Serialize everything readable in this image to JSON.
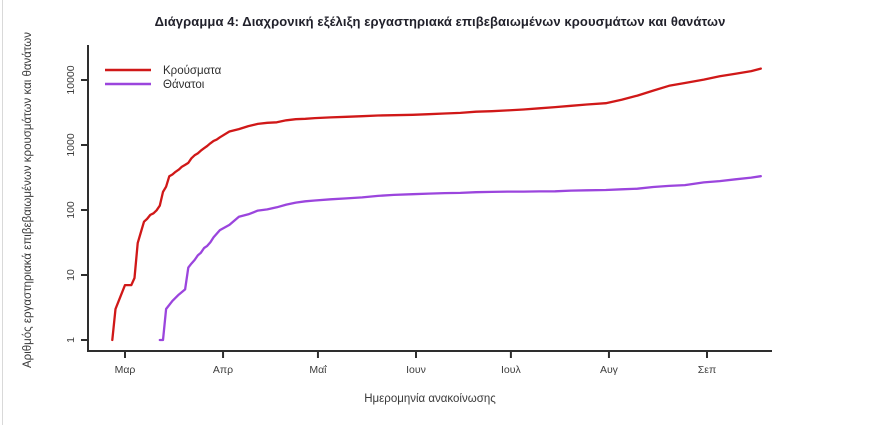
{
  "chart_data": {
    "type": "line",
    "title": "Διάγραμμα 4: Διαχρονική εξέλιξη εργαστηριακά επιβεβαιωμένων κρουσμάτων και θανάτων",
    "xlabel": "Ημερομηνία ανακοίνωσης",
    "ylabel": "Αριθμός εργαστηριακά επιβεβαιωμένων κρουσμάτων και θανάτων",
    "y_scale": "log",
    "y_ticks": [
      1,
      10,
      100,
      1000,
      10000
    ],
    "ylim": [
      1,
      20000
    ],
    "x_ticks": [
      "Μαρ",
      "Απρ",
      "Μαΐ",
      "Ιουν",
      "Ιουλ",
      "Αυγ",
      "Σεπ"
    ],
    "x_tick_days": [
      0,
      31,
      61,
      92,
      122,
      153,
      184
    ],
    "x_encoding": "days since 1 Μαρ",
    "grid": false,
    "legend_position": "top-left",
    "legend": [
      {
        "label": "Κρούσματα",
        "color": "#d01818"
      },
      {
        "label": "Θάνατοι",
        "color": "#9b45dd"
      }
    ],
    "series": [
      {
        "name": "Κρούσματα",
        "color": "#d01818",
        "points": [
          [
            -4,
            1
          ],
          [
            -3,
            3
          ],
          [
            -2,
            4
          ],
          [
            0,
            7
          ],
          [
            2,
            7
          ],
          [
            3,
            9
          ],
          [
            4,
            31
          ],
          [
            5,
            45
          ],
          [
            6,
            66
          ],
          [
            7,
            73
          ],
          [
            8,
            84
          ],
          [
            9,
            89
          ],
          [
            10,
            99
          ],
          [
            11,
            117
          ],
          [
            12,
            190
          ],
          [
            13,
            228
          ],
          [
            14,
            331
          ],
          [
            15,
            352
          ],
          [
            16,
            387
          ],
          [
            17,
            418
          ],
          [
            18,
            464
          ],
          [
            19,
            495
          ],
          [
            20,
            530
          ],
          [
            21,
            624
          ],
          [
            22,
            695
          ],
          [
            23,
            743
          ],
          [
            24,
            821
          ],
          [
            25,
            892
          ],
          [
            26,
            966
          ],
          [
            27,
            1061
          ],
          [
            28,
            1156
          ],
          [
            29,
            1212
          ],
          [
            30,
            1314
          ],
          [
            33,
            1613
          ],
          [
            36,
            1755
          ],
          [
            39,
            1955
          ],
          [
            42,
            2114
          ],
          [
            45,
            2192
          ],
          [
            48,
            2235
          ],
          [
            51,
            2401
          ],
          [
            54,
            2490
          ],
          [
            57,
            2534
          ],
          [
            60,
            2591
          ],
          [
            65,
            2663
          ],
          [
            70,
            2716
          ],
          [
            75,
            2770
          ],
          [
            80,
            2840
          ],
          [
            85,
            2878
          ],
          [
            91,
            2915
          ],
          [
            96,
            2980
          ],
          [
            101,
            3049
          ],
          [
            106,
            3121
          ],
          [
            111,
            3256
          ],
          [
            116,
            3310
          ],
          [
            121,
            3409
          ],
          [
            126,
            3519
          ],
          [
            131,
            3672
          ],
          [
            136,
            3826
          ],
          [
            141,
            4012
          ],
          [
            146,
            4193
          ],
          [
            152,
            4401
          ],
          [
            157,
            4974
          ],
          [
            162,
            5749
          ],
          [
            167,
            6858
          ],
          [
            172,
            8138
          ],
          [
            177,
            8987
          ],
          [
            183,
            10134
          ],
          [
            188,
            11386
          ],
          [
            193,
            12452
          ],
          [
            198,
            13730
          ],
          [
            201,
            14978
          ]
        ]
      },
      {
        "name": "Θάνατοι",
        "color": "#9b45dd",
        "points": [
          [
            11,
            1
          ],
          [
            12,
            1
          ],
          [
            13,
            3
          ],
          [
            15,
            4
          ],
          [
            17,
            5
          ],
          [
            19,
            6
          ],
          [
            20,
            13
          ],
          [
            21,
            15
          ],
          [
            22,
            17
          ],
          [
            23,
            20
          ],
          [
            24,
            22
          ],
          [
            25,
            26
          ],
          [
            26,
            28
          ],
          [
            27,
            32
          ],
          [
            28,
            38
          ],
          [
            29,
            43
          ],
          [
            30,
            49
          ],
          [
            33,
            59
          ],
          [
            36,
            79
          ],
          [
            39,
            86
          ],
          [
            42,
            98
          ],
          [
            45,
            102
          ],
          [
            48,
            110
          ],
          [
            51,
            121
          ],
          [
            54,
            130
          ],
          [
            57,
            136
          ],
          [
            60,
            140
          ],
          [
            65,
            146
          ],
          [
            70,
            151
          ],
          [
            75,
            156
          ],
          [
            80,
            165
          ],
          [
            85,
            171
          ],
          [
            91,
            175
          ],
          [
            96,
            179
          ],
          [
            101,
            182
          ],
          [
            106,
            183
          ],
          [
            111,
            188
          ],
          [
            116,
            190
          ],
          [
            121,
            192
          ],
          [
            126,
            192
          ],
          [
            131,
            193
          ],
          [
            136,
            194
          ],
          [
            141,
            199
          ],
          [
            146,
            201
          ],
          [
            152,
            203
          ],
          [
            157,
            208
          ],
          [
            162,
            213
          ],
          [
            167,
            226
          ],
          [
            172,
            235
          ],
          [
            177,
            242
          ],
          [
            183,
            266
          ],
          [
            188,
            278
          ],
          [
            193,
            297
          ],
          [
            198,
            315
          ],
          [
            201,
            331
          ]
        ]
      }
    ]
  }
}
